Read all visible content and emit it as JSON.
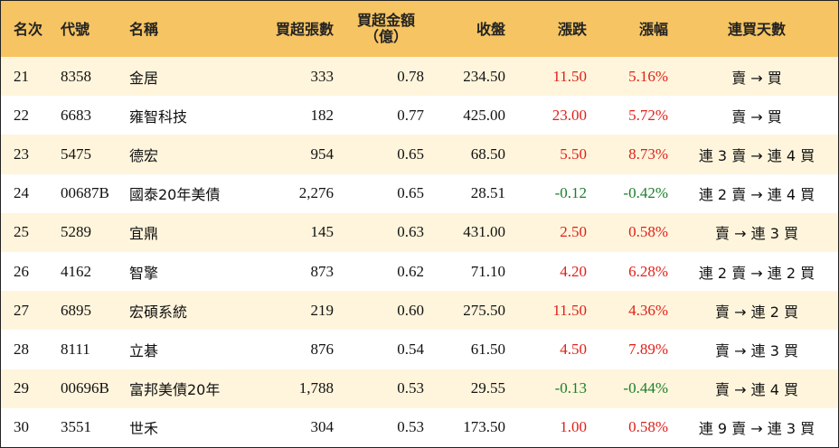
{
  "headers": {
    "rank": "名次",
    "code": "代號",
    "name": "名稱",
    "net_buy_shares": "買超張數",
    "net_buy_amount_line1": "買超金額",
    "net_buy_amount_line2": "（億）",
    "close": "收盤",
    "change": "漲跌",
    "change_pct": "漲幅",
    "streak": "連買天數"
  },
  "colors": {
    "header_bg": "#f6c462",
    "row_alt_bg": "#fff5dc",
    "up": "#e0201a",
    "down": "#1a7f2a"
  },
  "rows": [
    {
      "rank": "21",
      "code": "8358",
      "name": "金居",
      "shares": "333",
      "amount": "0.78",
      "close": "234.50",
      "change": "11.50",
      "change_pct": "5.16%",
      "streak": "賣 → 買",
      "direction": "up"
    },
    {
      "rank": "22",
      "code": "6683",
      "name": "雍智科技",
      "shares": "182",
      "amount": "0.77",
      "close": "425.00",
      "change": "23.00",
      "change_pct": "5.72%",
      "streak": "賣 → 買",
      "direction": "up"
    },
    {
      "rank": "23",
      "code": "5475",
      "name": "德宏",
      "shares": "954",
      "amount": "0.65",
      "close": "68.50",
      "change": "5.50",
      "change_pct": "8.73%",
      "streak": "連 3 賣 → 連 4 買",
      "direction": "up"
    },
    {
      "rank": "24",
      "code": "00687B",
      "name": "國泰20年美債",
      "shares": "2,276",
      "amount": "0.65",
      "close": "28.51",
      "change": "-0.12",
      "change_pct": "-0.42%",
      "streak": "連 2 賣 → 連 4 買",
      "direction": "down"
    },
    {
      "rank": "25",
      "code": "5289",
      "name": "宜鼎",
      "shares": "145",
      "amount": "0.63",
      "close": "431.00",
      "change": "2.50",
      "change_pct": "0.58%",
      "streak": "賣 → 連 3 買",
      "direction": "up"
    },
    {
      "rank": "26",
      "code": "4162",
      "name": "智擎",
      "shares": "873",
      "amount": "0.62",
      "close": "71.10",
      "change": "4.20",
      "change_pct": "6.28%",
      "streak": "連 2 賣 → 連 2 買",
      "direction": "up"
    },
    {
      "rank": "27",
      "code": "6895",
      "name": "宏碩系統",
      "shares": "219",
      "amount": "0.60",
      "close": "275.50",
      "change": "11.50",
      "change_pct": "4.36%",
      "streak": "賣 → 連 2 買",
      "direction": "up"
    },
    {
      "rank": "28",
      "code": "8111",
      "name": "立碁",
      "shares": "876",
      "amount": "0.54",
      "close": "61.50",
      "change": "4.50",
      "change_pct": "7.89%",
      "streak": "賣 → 連 3 買",
      "direction": "up"
    },
    {
      "rank": "29",
      "code": "00696B",
      "name": "富邦美債20年",
      "shares": "1,788",
      "amount": "0.53",
      "close": "29.55",
      "change": "-0.13",
      "change_pct": "-0.44%",
      "streak": "賣 → 連 4 買",
      "direction": "down"
    },
    {
      "rank": "30",
      "code": "3551",
      "name": "世禾",
      "shares": "304",
      "amount": "0.53",
      "close": "173.50",
      "change": "1.00",
      "change_pct": "0.58%",
      "streak": "連 9 賣 → 連 3 買",
      "direction": "up"
    }
  ]
}
